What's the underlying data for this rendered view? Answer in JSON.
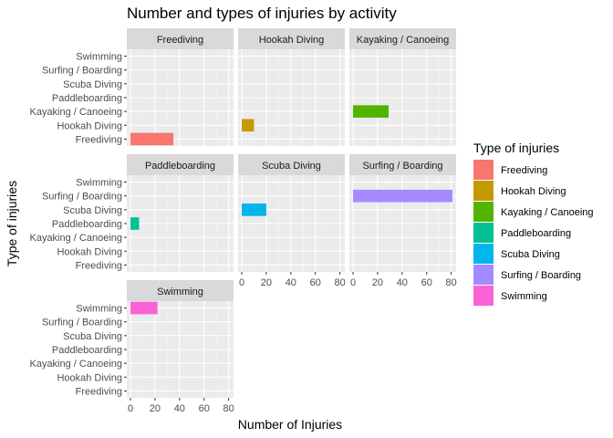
{
  "chart_data": {
    "type": "bar",
    "orientation": "horizontal",
    "title": "Number and types of injuries by activity",
    "xlabel": "Number of Injuries",
    "ylabel": "Type of injuries",
    "xlim": [
      -3,
      84
    ],
    "xticks": [
      0,
      20,
      40,
      60,
      80
    ],
    "grid": true,
    "legend_position": "right",
    "legend_title": "Type of injuries",
    "categories": [
      "Freediving",
      "Hookah Diving",
      "Kayaking / Canoeing",
      "Paddleboarding",
      "Scuba Diving",
      "Surfing / Boarding",
      "Swimming"
    ],
    "colors": {
      "Freediving": "#F8766D",
      "Hookah Diving": "#C49A00",
      "Kayaking / Canoeing": "#53B400",
      "Paddleboarding": "#00C094",
      "Scuba Diving": "#00B6EB",
      "Surfing / Boarding": "#A58AFF",
      "Swimming": "#FB61D7"
    },
    "panels": [
      {
        "name": "Freediving",
        "category": "Freediving",
        "value": 35
      },
      {
        "name": "Hookah Diving",
        "category": "Hookah Diving",
        "value": 10
      },
      {
        "name": "Kayaking / Canoeing",
        "category": "Kayaking / Canoeing",
        "value": 29
      },
      {
        "name": "Paddleboarding",
        "category": "Paddleboarding",
        "value": 7
      },
      {
        "name": "Scuba Diving",
        "category": "Scuba Diving",
        "value": 20
      },
      {
        "name": "Surfing / Boarding",
        "category": "Surfing / Boarding",
        "value": 81
      },
      {
        "name": "Swimming",
        "category": "Swimming",
        "value": 22
      }
    ]
  }
}
